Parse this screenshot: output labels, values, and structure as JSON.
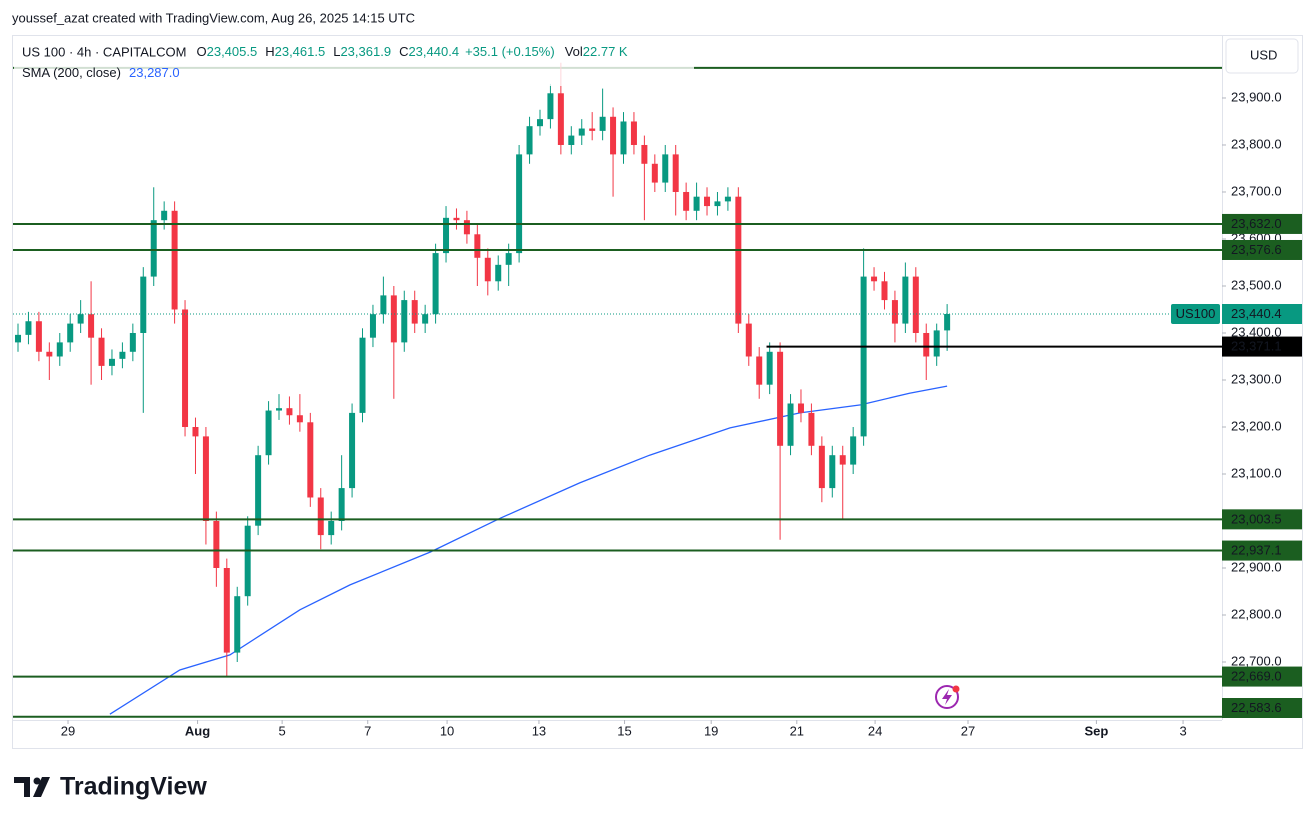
{
  "chart_data": {
    "type": "candlestick",
    "attribution": "youssef_azat created with TradingView.com, Aug 26, 2025 14:15 UTC",
    "symbol": "US 100 · 4h · CAPITALCOM",
    "ohlc_legend": [
      {
        "key": "O",
        "value": "23,405.5"
      },
      {
        "key": "H",
        "value": "23,461.5"
      },
      {
        "key": "L",
        "value": "23,361.9"
      },
      {
        "key": "C",
        "value": "23,440.4"
      }
    ],
    "change": "+35.1 (+0.15%)",
    "volume_key": "Vol",
    "volume": "22.77 K",
    "indicator": "SMA (200, close)",
    "indicator_value": "23,287.0",
    "currency": "USD",
    "logo": "TradingView",
    "up_color": "#089981",
    "down_color": "#f23645",
    "candles": [
      [
        23380,
        23420,
        23360,
        23396
      ],
      [
        23396,
        23445,
        23376,
        23425
      ],
      [
        23425,
        23445,
        23340,
        23360
      ],
      [
        23360,
        23380,
        23300,
        23350
      ],
      [
        23350,
        23400,
        23330,
        23380
      ],
      [
        23380,
        23440,
        23360,
        23420
      ],
      [
        23420,
        23470,
        23400,
        23440
      ],
      [
        23440,
        23510,
        23290,
        23390
      ],
      [
        23390,
        23410,
        23300,
        23330
      ],
      [
        23330,
        23365,
        23310,
        23345
      ],
      [
        23345,
        23380,
        23325,
        23360
      ],
      [
        23360,
        23420,
        23340,
        23400
      ],
      [
        23400,
        23540,
        23230,
        23520
      ],
      [
        23520,
        23710,
        23500,
        23640
      ],
      [
        23640,
        23680,
        23620,
        23660
      ],
      [
        23660,
        23680,
        23420,
        23450
      ],
      [
        23450,
        23470,
        23180,
        23200
      ],
      [
        23200,
        23220,
        23100,
        23180
      ],
      [
        23180,
        23200,
        22950,
        23000
      ],
      [
        23000,
        23020,
        22860,
        22900
      ],
      [
        22900,
        22920,
        22670,
        22720
      ],
      [
        22720,
        22860,
        22700,
        22840
      ],
      [
        22840,
        23010,
        22820,
        22990
      ],
      [
        22990,
        23160,
        22970,
        23140
      ],
      [
        23140,
        23255,
        23120,
        23235
      ],
      [
        23235,
        23270,
        23215,
        23240
      ],
      [
        23240,
        23265,
        23205,
        23225
      ],
      [
        23225,
        23270,
        23190,
        23210
      ],
      [
        23210,
        23230,
        23030,
        23050
      ],
      [
        23050,
        23070,
        22940,
        22970
      ],
      [
        22970,
        23020,
        22950,
        23000
      ],
      [
        23000,
        23140,
        22980,
        23070
      ],
      [
        23070,
        23250,
        23050,
        23230
      ],
      [
        23230,
        23410,
        23210,
        23390
      ],
      [
        23390,
        23460,
        23370,
        23440
      ],
      [
        23440,
        23520,
        23420,
        23480
      ],
      [
        23480,
        23500,
        23260,
        23380
      ],
      [
        23380,
        23490,
        23360,
        23470
      ],
      [
        23470,
        23490,
        23400,
        23420
      ],
      [
        23420,
        23460,
        23400,
        23440
      ],
      [
        23440,
        23590,
        23420,
        23570
      ],
      [
        23570,
        23670,
        23550,
        23645
      ],
      [
        23645,
        23665,
        23620,
        23640
      ],
      [
        23640,
        23660,
        23590,
        23610
      ],
      [
        23610,
        23630,
        23500,
        23560
      ],
      [
        23560,
        23580,
        23480,
        23510
      ],
      [
        23510,
        23565,
        23490,
        23545
      ],
      [
        23545,
        23590,
        23500,
        23570
      ],
      [
        23570,
        23800,
        23550,
        23780
      ],
      [
        23780,
        23860,
        23760,
        23840
      ],
      [
        23840,
        23875,
        23820,
        23855
      ],
      [
        23855,
        23930,
        23835,
        23910
      ],
      [
        23910,
        23975,
        23780,
        23800
      ],
      [
        23800,
        23840,
        23780,
        23820
      ],
      [
        23820,
        23855,
        23800,
        23835
      ],
      [
        23835,
        23870,
        23810,
        23830
      ],
      [
        23830,
        23920,
        23810,
        23860
      ],
      [
        23860,
        23880,
        23690,
        23780
      ],
      [
        23780,
        23870,
        23760,
        23850
      ],
      [
        23850,
        23870,
        23780,
        23800
      ],
      [
        23800,
        23820,
        23640,
        23760
      ],
      [
        23760,
        23780,
        23700,
        23720
      ],
      [
        23720,
        23800,
        23700,
        23780
      ],
      [
        23780,
        23800,
        23650,
        23700
      ],
      [
        23700,
        23720,
        23640,
        23660
      ],
      [
        23660,
        23720,
        23640,
        23690
      ],
      [
        23690,
        23710,
        23650,
        23670
      ],
      [
        23670,
        23700,
        23650,
        23680
      ],
      [
        23680,
        23710,
        23660,
        23690
      ],
      [
        23690,
        23710,
        23400,
        23420
      ],
      [
        23420,
        23440,
        23330,
        23350
      ],
      [
        23350,
        23370,
        23260,
        23290
      ],
      [
        23290,
        23380,
        23270,
        23360
      ],
      [
        23360,
        23380,
        22960,
        23160
      ],
      [
        23160,
        23270,
        23140,
        23250
      ],
      [
        23250,
        23280,
        23210,
        23230
      ],
      [
        23230,
        23250,
        23140,
        23160
      ],
      [
        23160,
        23180,
        23040,
        23070
      ],
      [
        23070,
        23160,
        23050,
        23140
      ],
      [
        23140,
        23160,
        23003,
        23120
      ],
      [
        23120,
        23200,
        23100,
        23180
      ],
      [
        23180,
        23580,
        23160,
        23520
      ],
      [
        23520,
        23540,
        23490,
        23510
      ],
      [
        23510,
        23530,
        23450,
        23470
      ],
      [
        23470,
        23490,
        23380,
        23420
      ],
      [
        23420,
        23550,
        23400,
        23520
      ],
      [
        23520,
        23540,
        23380,
        23400
      ],
      [
        23400,
        23420,
        23300,
        23350
      ],
      [
        23350,
        23420,
        23330,
        23405.5
      ],
      [
        23405.5,
        23461.5,
        23361.9,
        23440.4
      ]
    ],
    "sma": {
      "color": "#2962ff",
      "x": [
        8.8,
        15.5,
        20.3,
        27.0,
        31.8,
        39.5,
        46.2,
        53.8,
        60.5,
        68.2,
        74.9,
        80.7,
        85.4,
        89
      ],
      "values": [
        22589,
        22683,
        22715,
        22811,
        22864,
        22934,
        23006,
        23081,
        23140,
        23198,
        23230,
        23247,
        23272,
        23287
      ]
    },
    "top_line": 23964,
    "levels": [
      {
        "value": 23632,
        "label": "23,632.0",
        "color": "#1b5e20"
      },
      {
        "value": 23576.6,
        "label": "23,576.6",
        "color": "#1b5e20"
      },
      {
        "value": 23371.1,
        "label": "23,371.1",
        "color": "#000000",
        "start": 71.7
      },
      {
        "value": 23003.5,
        "label": "23,003.5",
        "color": "#1b5e20"
      },
      {
        "value": 22937.1,
        "label": "22,937.1",
        "color": "#1b5e20"
      },
      {
        "value": 22669,
        "label": "22,669.0",
        "color": "#1b5e20"
      },
      {
        "value": 22583.6,
        "label": "22,583.6",
        "color": "#1b5e20"
      }
    ],
    "last_price": {
      "value": 23440.4,
      "label": "23,440.4",
      "tag": "US100",
      "color": "#089981"
    },
    "ylim": [
      22576.6,
      24034
    ],
    "yticks": [
      {
        "value": 22700,
        "label": "22,700.0"
      },
      {
        "value": 22800,
        "label": "22,800.0"
      },
      {
        "value": 22900,
        "label": "22,900.0"
      },
      {
        "value": 23100,
        "label": "23,100.0"
      },
      {
        "value": 23200,
        "label": "23,200.0"
      },
      {
        "value": 23300,
        "label": "23,300.0"
      },
      {
        "value": 23400,
        "label": "23,400.0"
      },
      {
        "value": 23500,
        "label": "23,500.0"
      },
      {
        "value": 23600,
        "label": "23,600.0"
      },
      {
        "value": 23700,
        "label": "23,700.0"
      },
      {
        "value": 23800,
        "label": "23,800.0"
      },
      {
        "value": 23900,
        "label": "23,900.0"
      }
    ],
    "xlim": [
      -0.48,
      115.33
    ],
    "xticks": [
      {
        "value": 4.79,
        "label": "29"
      },
      {
        "value": 17.2,
        "label": "Aug"
      },
      {
        "value": 25.3,
        "label": "5"
      },
      {
        "value": 33.5,
        "label": "7"
      },
      {
        "value": 41.1,
        "label": "10"
      },
      {
        "value": 49.9,
        "label": "13"
      },
      {
        "value": 58.1,
        "label": "15"
      },
      {
        "value": 66.4,
        "label": "19"
      },
      {
        "value": 74.6,
        "label": "21"
      },
      {
        "value": 82.1,
        "label": "24"
      },
      {
        "value": 91.0,
        "label": "27"
      },
      {
        "value": 103.3,
        "label": "Sep"
      },
      {
        "value": 111.6,
        "label": "3"
      }
    ]
  }
}
